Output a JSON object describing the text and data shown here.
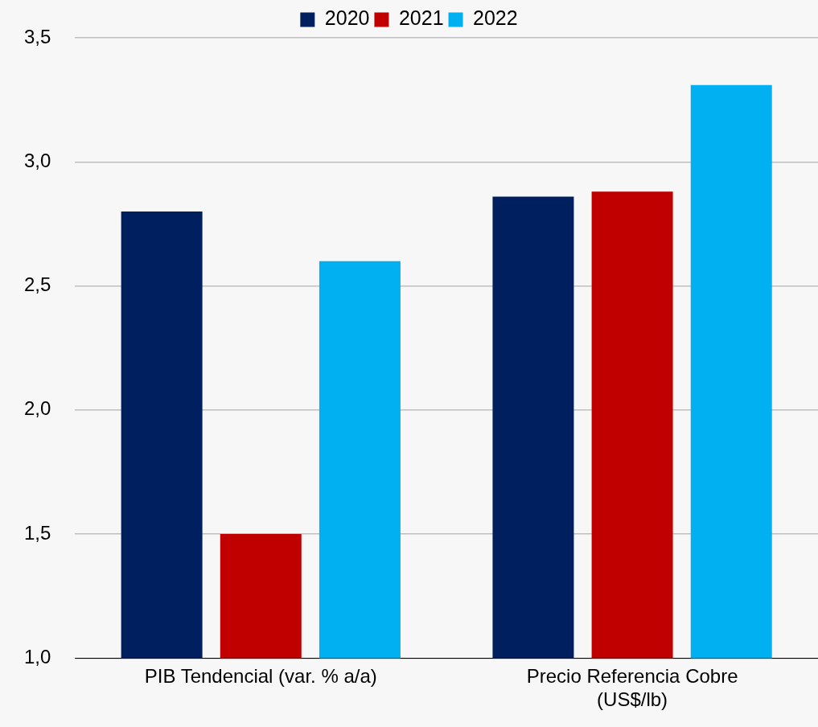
{
  "chart_data": {
    "type": "bar",
    "categories": [
      "PIB Tendencial (var. % a/a)",
      "Precio Referencia Cobre (US$/lb)"
    ],
    "series": [
      {
        "name": "2020",
        "color": "#001f5f",
        "values": [
          2.8,
          2.86
        ]
      },
      {
        "name": "2021",
        "color": "#c00000",
        "values": [
          1.5,
          2.88
        ]
      },
      {
        "name": "2022",
        "color": "#00b0f0",
        "values": [
          2.6,
          3.31
        ]
      }
    ],
    "ylim": [
      1.0,
      3.5
    ],
    "yticks": [
      {
        "value": 1.0,
        "label": "1,0"
      },
      {
        "value": 1.5,
        "label": "1,5"
      },
      {
        "value": 2.0,
        "label": "2,0"
      },
      {
        "value": 2.5,
        "label": "2,5"
      },
      {
        "value": 3.0,
        "label": "3,0"
      },
      {
        "value": 3.5,
        "label": "3,5"
      }
    ],
    "grid": "y",
    "legend": "top"
  }
}
